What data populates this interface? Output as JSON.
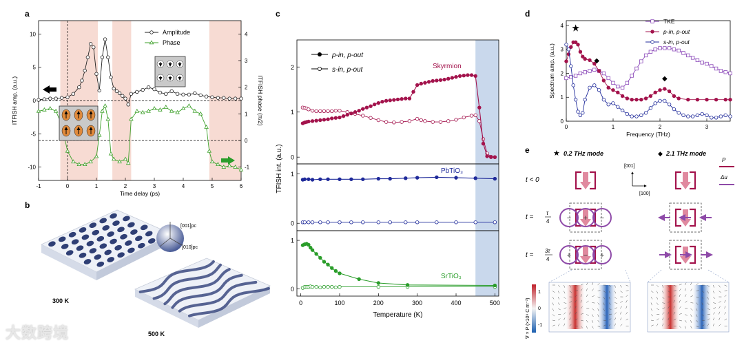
{
  "panels": {
    "a": "a",
    "b": "b",
    "c": "c",
    "d": "d",
    "e": "e"
  },
  "watermark": "大数跨境",
  "colors": {
    "amplitude": "#222222",
    "phase": "#3da02a",
    "crimson": "#a3134c",
    "navy": "#1f2a9a",
    "green": "#2a9d2a",
    "tke": "#8a47b8",
    "shade_pink": "#f7dbd3",
    "shade_blue": "#c9d8ec",
    "arrow_purple": "#8e4aa8",
    "arrow_pink": "#e0899f"
  },
  "chart_data": [
    {
      "id": "a",
      "type": "line",
      "xlabel": "Time delay (ps)",
      "ylabel": "ITFISH amp. (a.u.)",
      "y2label": "ITFISH phase (π/2)",
      "xlim": [
        -1,
        6
      ],
      "ylim": [
        -12,
        12
      ],
      "y2lim": [
        -1.5,
        4.5
      ],
      "xticks": [
        "-1",
        "0",
        "1",
        "2",
        "3",
        "4",
        "5",
        "6"
      ],
      "yticks": [
        "-10",
        "-5",
        "0",
        "5",
        "10"
      ],
      "y2ticks": [
        "-1",
        "0",
        "1",
        "2",
        "3",
        "4"
      ],
      "legend": "top-right",
      "shaded_intervals_ps": [
        [
          -0.25,
          1.05
        ],
        [
          1.55,
          2.2
        ],
        [
          4.9,
          6
        ]
      ],
      "series": [
        {
          "name": "Amplitude",
          "marker": "open-circle",
          "axis": "left",
          "x": [
            -1,
            -0.8,
            -0.6,
            -0.4,
            -0.2,
            0,
            0.2,
            0.4,
            0.5,
            0.6,
            0.7,
            0.8,
            0.9,
            1.0,
            1.1,
            1.2,
            1.3,
            1.4,
            1.5,
            1.6,
            1.7,
            1.8,
            1.9,
            2.0,
            2.1,
            2.2,
            2.4,
            2.6,
            2.8,
            3.0,
            3.2,
            3.4,
            3.6,
            3.8,
            4.0,
            4.2,
            4.4,
            4.6,
            4.8,
            5.0,
            5.2,
            5.4,
            5.6,
            5.8,
            6.0
          ],
          "y": [
            0.1,
            0.2,
            0.3,
            0.3,
            0.4,
            0.5,
            1.0,
            2.0,
            3.0,
            4.5,
            6.5,
            8.5,
            8.0,
            4.0,
            1.5,
            6.5,
            9.2,
            6.5,
            3.5,
            1.8,
            1.4,
            1.1,
            0.7,
            0.3,
            -0.6,
            1.0,
            1.3,
            1.6,
            2.0,
            1.7,
            1.2,
            1.0,
            1.4,
            1.0,
            0.9,
            0.9,
            1.1,
            0.8,
            0.6,
            0.5,
            0.4,
            0.4,
            0.3,
            0.3,
            0.3
          ]
        },
        {
          "name": "Phase",
          "marker": "open-triangle",
          "axis": "right",
          "x": [
            -1,
            -0.8,
            -0.6,
            -0.4,
            -0.2,
            0,
            0.2,
            0.4,
            0.6,
            0.8,
            1.0,
            1.1,
            1.2,
            1.3,
            1.4,
            1.5,
            1.6,
            1.8,
            2.0,
            2.1,
            2.2,
            2.4,
            2.6,
            2.8,
            3.0,
            3.2,
            3.4,
            3.6,
            3.8,
            4.0,
            4.2,
            4.4,
            4.6,
            4.8,
            4.9,
            5.0,
            5.2,
            5.4,
            5.6,
            5.8,
            6.0
          ],
          "y": [
            1.1,
            1.15,
            1.2,
            1.1,
            0.6,
            -0.4,
            -0.8,
            -0.9,
            -0.9,
            -0.8,
            -0.6,
            0.2,
            1.1,
            1.3,
            0.8,
            -0.5,
            -0.7,
            -0.8,
            -0.7,
            -0.85,
            0.8,
            1.1,
            1.05,
            1.1,
            1.2,
            1.15,
            1.25,
            1.1,
            1.05,
            1.2,
            1.3,
            1.1,
            1.0,
            0.5,
            -0.4,
            -0.8,
            -0.9,
            -1.0,
            -0.95,
            -1.0,
            -1.1
          ]
        }
      ]
    },
    {
      "id": "c",
      "type": "line",
      "xlabel": "Temperature (K)",
      "ylabel": "TFISH int. (a.u.)",
      "xlim": [
        -10,
        510
      ],
      "xticks": [
        "0",
        "100",
        "200",
        "300",
        "400",
        "500"
      ],
      "shaded_interval_K": [
        450,
        510
      ],
      "legend": "top-left",
      "subplots": [
        {
          "label": "Skyrmion",
          "ylim": [
            -0.15,
            2.6
          ],
          "yticks": [
            "0",
            "1",
            "2"
          ],
          "series": [
            {
              "name": "p-in, p-out",
              "marker": "filled-circle",
              "x": [
                5,
                10,
                15,
                20,
                30,
                40,
                50,
                60,
                70,
                80,
                90,
                100,
                110,
                120,
                130,
                140,
                150,
                160,
                170,
                180,
                190,
                200,
                210,
                220,
                230,
                240,
                250,
                260,
                270,
                280,
                290,
                300,
                310,
                320,
                330,
                340,
                350,
                360,
                370,
                380,
                390,
                400,
                410,
                420,
                430,
                440,
                450,
                460,
                470,
                480,
                490,
                500
              ],
              "y": [
                0.75,
                0.77,
                0.78,
                0.79,
                0.8,
                0.81,
                0.82,
                0.83,
                0.84,
                0.86,
                0.87,
                0.88,
                0.91,
                0.94,
                0.97,
                1.0,
                1.03,
                1.07,
                1.1,
                1.13,
                1.17,
                1.2,
                1.23,
                1.25,
                1.26,
                1.27,
                1.28,
                1.29,
                1.3,
                1.3,
                1.45,
                1.6,
                1.63,
                1.65,
                1.67,
                1.69,
                1.7,
                1.71,
                1.72,
                1.74,
                1.76,
                1.78,
                1.8,
                1.81,
                1.82,
                1.82,
                1.8,
                1.1,
                0.3,
                0.02,
                0.0,
                0.0
              ]
            },
            {
              "name": "s-in, p-out",
              "marker": "open-circle",
              "x": [
                5,
                10,
                15,
                20,
                30,
                40,
                50,
                60,
                70,
                80,
                90,
                100,
                120,
                140,
                160,
                180,
                200,
                220,
                240,
                260,
                280,
                300,
                310,
                320,
                340,
                360,
                380,
                400,
                420,
                440,
                450,
                460,
                470,
                480,
                490,
                500
              ],
              "y": [
                1.1,
                1.09,
                1.08,
                1.06,
                1.03,
                1.02,
                1.02,
                1.02,
                1.02,
                1.02,
                1.03,
                1.03,
                1.0,
                0.96,
                0.92,
                0.87,
                0.82,
                0.78,
                0.77,
                0.78,
                0.8,
                0.85,
                0.82,
                0.8,
                0.78,
                0.78,
                0.8,
                0.83,
                0.88,
                0.92,
                0.93,
                0.8,
                0.4,
                0.08,
                0.01,
                0.0
              ]
            }
          ]
        },
        {
          "label": "PbTiO₃",
          "ylim": [
            -0.15,
            1.2
          ],
          "yticks": [
            "0",
            "1"
          ],
          "series": [
            {
              "name": "p-in, p-out",
              "marker": "filled-circle",
              "x": [
                5,
                10,
                20,
                30,
                50,
                70,
                100,
                130,
                160,
                200,
                230,
                270,
                300,
                350,
                400,
                450,
                500
              ],
              "y": [
                0.88,
                0.89,
                0.89,
                0.88,
                0.89,
                0.89,
                0.89,
                0.89,
                0.89,
                0.9,
                0.9,
                0.91,
                0.92,
                0.93,
                0.92,
                0.91,
                0.9
              ]
            },
            {
              "name": "s-in, p-out",
              "marker": "open-circle",
              "x": [
                5,
                10,
                20,
                30,
                50,
                70,
                100,
                130,
                160,
                200,
                230,
                270,
                300,
                350,
                400,
                450,
                500
              ],
              "y": [
                0.02,
                0.02,
                0.02,
                0.02,
                0.02,
                0.02,
                0.02,
                0.02,
                0.02,
                0.02,
                0.02,
                0.02,
                0.02,
                0.02,
                0.02,
                0.02,
                0.02
              ]
            }
          ]
        },
        {
          "label": "SrTiO₃",
          "ylim": [
            -0.15,
            1.2
          ],
          "yticks": [
            "0",
            "1"
          ],
          "series": [
            {
              "name": "p-in, p-out",
              "marker": "filled-circle",
              "x": [
                5,
                10,
                15,
                20,
                25,
                30,
                40,
                50,
                60,
                70,
                80,
                90,
                100,
                150,
                200,
                275,
                500
              ],
              "y": [
                0.9,
                0.92,
                0.93,
                0.91,
                0.85,
                0.8,
                0.72,
                0.64,
                0.56,
                0.5,
                0.43,
                0.37,
                0.32,
                0.2,
                0.12,
                0.08,
                0.07
              ]
            },
            {
              "name": "s-in, p-out",
              "marker": "open-circle",
              "x": [
                5,
                10,
                15,
                20,
                25,
                30,
                40,
                50,
                60,
                70,
                80,
                90,
                100,
                200,
                275,
                500
              ],
              "y": [
                0.02,
                0.04,
                0.04,
                0.04,
                0.05,
                0.04,
                0.04,
                0.03,
                0.04,
                0.04,
                0.04,
                0.03,
                0.04,
                0.04,
                0.04,
                0.04
              ]
            }
          ]
        }
      ]
    },
    {
      "id": "d",
      "type": "line",
      "xlabel": "Frequency (THz)",
      "ylabel": "Spectrum amp. (a.u.)",
      "xlim": [
        0,
        3.5
      ],
      "ylim": [
        0,
        4.2
      ],
      "xticks": [
        "0",
        "1",
        "2",
        "3"
      ],
      "yticks": [
        "0",
        "1",
        "2",
        "3",
        "4"
      ],
      "legend": "top-right",
      "annotations": [
        {
          "symbol": "★",
          "x": 0.2,
          "y": 3.75
        },
        {
          "symbol": "◆",
          "x": 0.65,
          "y": 2.45
        },
        {
          "symbol": "◆",
          "x": 2.1,
          "y": 1.7
        }
      ],
      "series": [
        {
          "name": "TKE",
          "marker": "open-square",
          "x": [
            0,
            0.1,
            0.2,
            0.3,
            0.4,
            0.5,
            0.6,
            0.7,
            0.8,
            0.9,
            1.0,
            1.1,
            1.2,
            1.3,
            1.4,
            1.5,
            1.6,
            1.7,
            1.8,
            1.9,
            2.0,
            2.1,
            2.2,
            2.3,
            2.4,
            2.5,
            2.6,
            2.7,
            2.8,
            2.9,
            3.0,
            3.1,
            3.2,
            3.3,
            3.4,
            3.5
          ],
          "y": [
            1.8,
            1.85,
            1.9,
            2.0,
            2.05,
            2.1,
            2.15,
            2.1,
            2.0,
            1.8,
            1.6,
            1.45,
            1.4,
            1.6,
            1.9,
            2.2,
            2.5,
            2.75,
            2.9,
            3.0,
            3.05,
            3.05,
            3.05,
            3.0,
            2.95,
            2.85,
            2.75,
            2.65,
            2.55,
            2.45,
            2.4,
            2.3,
            2.2,
            2.1,
            2.05,
            2.0
          ]
        },
        {
          "name": "p-in, p-out",
          "marker": "filled-circle",
          "x": [
            0,
            0.05,
            0.1,
            0.15,
            0.2,
            0.25,
            0.3,
            0.35,
            0.4,
            0.5,
            0.6,
            0.7,
            0.8,
            0.9,
            1.0,
            1.1,
            1.2,
            1.3,
            1.4,
            1.5,
            1.6,
            1.7,
            1.8,
            1.9,
            2.0,
            2.1,
            2.2,
            2.3,
            2.4,
            2.6,
            2.8,
            3.0,
            3.2,
            3.4,
            3.5
          ],
          "y": [
            2.5,
            2.8,
            3.1,
            3.3,
            3.3,
            3.2,
            2.9,
            2.7,
            2.6,
            2.55,
            2.4,
            2.1,
            1.7,
            1.4,
            1.3,
            1.2,
            1.05,
            0.95,
            0.9,
            0.9,
            0.9,
            0.95,
            1.05,
            1.2,
            1.3,
            1.35,
            1.25,
            1.05,
            0.95,
            0.9,
            0.9,
            0.9,
            0.9,
            0.9,
            0.9
          ]
        },
        {
          "name": "s-in, p-out",
          "marker": "open-circle",
          "x": [
            0,
            0.05,
            0.1,
            0.15,
            0.2,
            0.25,
            0.3,
            0.35,
            0.4,
            0.5,
            0.6,
            0.7,
            0.8,
            0.9,
            1.0,
            1.1,
            1.2,
            1.3,
            1.4,
            1.5,
            1.6,
            1.7,
            1.8,
            1.9,
            2.0,
            2.1,
            2.2,
            2.3,
            2.4,
            2.5,
            2.6,
            2.7,
            2.8,
            2.9,
            3.0,
            3.1,
            3.2,
            3.3,
            3.4,
            3.5
          ],
          "y": [
            3.2,
            3.0,
            2.3,
            1.5,
            0.9,
            0.4,
            0.25,
            0.35,
            0.9,
            1.4,
            1.5,
            1.3,
            0.9,
            0.7,
            0.75,
            0.6,
            0.45,
            0.3,
            0.2,
            0.2,
            0.25,
            0.35,
            0.55,
            0.75,
            0.85,
            0.85,
            0.7,
            0.5,
            0.35,
            0.25,
            0.2,
            0.2,
            0.25,
            0.3,
            0.25,
            0.15,
            0.15,
            0.2,
            0.25,
            0.2
          ]
        }
      ]
    }
  ],
  "panel_b": {
    "label_300": "300 K",
    "label_500": "500 K",
    "axis_001": "[001]pc",
    "axis_010": "[010]pc"
  },
  "panel_e": {
    "mode1": "0.2 THz mode",
    "mode2": "2.1 THz mode",
    "star": "★",
    "diamond": "◆",
    "row1": "t < 0",
    "row2_t": "t =",
    "row2_num": "τ",
    "row2_den": "4",
    "row3_t": "t =",
    "row3_num": "3τ",
    "row3_den": "4",
    "axis_001": "[001]",
    "axis_100": "[100]",
    "legend_P": "P",
    "legend_du": "Δu",
    "cbar_label": "∇ × P (×10⁹ C m⁻³)",
    "cbar_ticks": [
      "1",
      "0",
      "-1"
    ]
  }
}
